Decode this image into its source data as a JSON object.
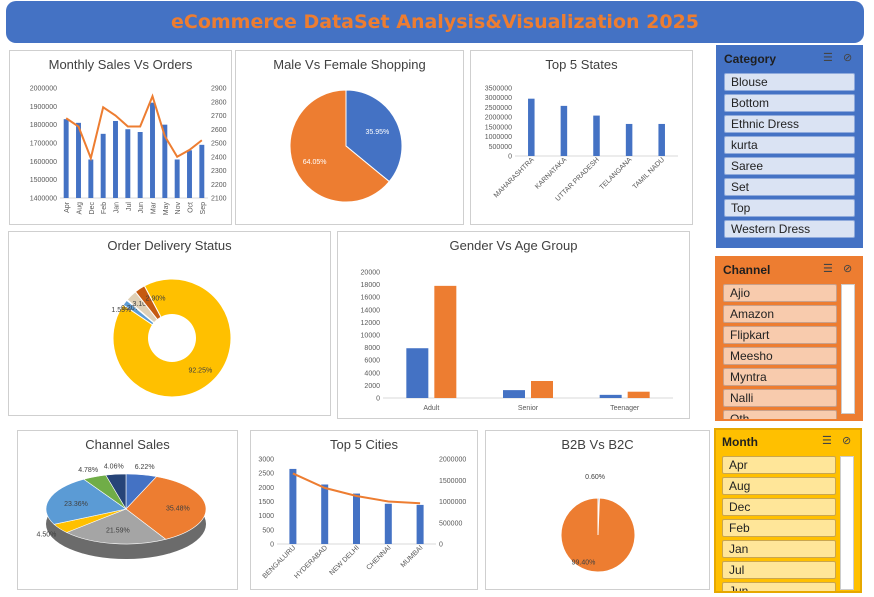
{
  "page": {
    "title": "eCommerce DataSet Analysis&Visualization 2025"
  },
  "colors": {
    "blue": "#4472c4",
    "orange": "#ed7d31",
    "gray": "#a5a5a5",
    "yellow": "#ffc000",
    "lightblue": "#5b9bd5",
    "green": "#70ad47",
    "navy": "#264478",
    "rust": "#c55a11"
  },
  "slicers": {
    "category": {
      "title": "Category",
      "items": [
        "Blouse",
        "Bottom",
        "Ethnic Dress",
        "kurta",
        "Saree",
        "Set",
        "Top",
        "Western Dress"
      ]
    },
    "channel": {
      "title": "Channel",
      "items": [
        "Ajio",
        "Amazon",
        "Flipkart",
        "Meesho",
        "Myntra",
        "Nalli",
        "Oth"
      ]
    },
    "month": {
      "title": "Month",
      "items": [
        "Apr",
        "Aug",
        "Dec",
        "Feb",
        "Jan",
        "Jul",
        "Jun"
      ]
    }
  },
  "chart_data": [
    {
      "id": "monthly",
      "type": "bar",
      "title": "Monthly Sales Vs Orders",
      "categories": [
        "Apr",
        "Aug",
        "Dec",
        "Feb",
        "Jan",
        "Jul",
        "Jun",
        "Mar",
        "May",
        "Nov",
        "Oct",
        "Sep"
      ],
      "series": [
        {
          "values": [
            1830000,
            1810000,
            1610000,
            1750000,
            1820000,
            1775000,
            1760000,
            1920000,
            1800000,
            1610000,
            1660000,
            1690000
          ],
          "color": "#4472c4",
          "axis": "left"
        },
        {
          "values": [
            2680,
            2620,
            2390,
            2760,
            2700,
            2620,
            2620,
            2840,
            2550,
            2400,
            2450,
            2520
          ],
          "color": "#ed7d31",
          "axis": "right",
          "type": "line"
        }
      ],
      "yticks": [
        "1400000",
        "1500000",
        "1600000",
        "1700000",
        "1800000",
        "1900000",
        "2000000"
      ],
      "y2ticks": [
        "2100",
        "2200",
        "2300",
        "2400",
        "2500",
        "2600",
        "2700",
        "2800",
        "2900"
      ],
      "ylim": [
        1400000,
        2000000
      ],
      "y2lim": [
        2100,
        2900
      ]
    },
    {
      "id": "gender",
      "type": "pie",
      "title": "Male Vs Female Shopping",
      "slices": [
        {
          "value": 35.95,
          "label": "35.95%",
          "color": "#4472c4"
        },
        {
          "value": 64.05,
          "label": "64.05%",
          "color": "#ed7d31"
        }
      ]
    },
    {
      "id": "states",
      "type": "bar",
      "title": "Top 5 States",
      "categories": [
        "MAHARASHTRA",
        "KARNATAKA",
        "UTTAR PRADESH",
        "TELANGANA",
        "TAMIL NADU"
      ],
      "values": [
        2950000,
        2580000,
        2080000,
        1650000,
        1650000
      ],
      "yticks": [
        "0",
        "500000",
        "1000000",
        "1500000",
        "2000000",
        "2500000",
        "3000000",
        "3500000"
      ],
      "ylim": [
        0,
        3500000
      ]
    },
    {
      "id": "delivery",
      "type": "pie",
      "title": "Order Delivery Status",
      "slices": [
        {
          "value": 92.25,
          "label": "92.25%",
          "color": "#ffc000"
        },
        {
          "value": 1.55,
          "label": "1.55%",
          "color": "#5b9bd5"
        },
        {
          "value": 0.2,
          "label": "0.20%",
          "color": "#4472c4"
        },
        {
          "value": 3.1,
          "label": "3.10%",
          "color": "#dfd0b6"
        },
        {
          "value": 2.9,
          "label": "2.90%",
          "color": "#c55a11"
        }
      ]
    },
    {
      "id": "agegroup",
      "type": "bar",
      "title": "Gender Vs Age Group",
      "categories": [
        "Adult",
        "Senior",
        "Teenager"
      ],
      "series": [
        {
          "values": [
            7900,
            1250,
            500
          ],
          "color": "#4472c4"
        },
        {
          "values": [
            17800,
            2700,
            1000
          ],
          "color": "#ed7d31"
        }
      ],
      "yticks": [
        "0",
        "2000",
        "4000",
        "6000",
        "8000",
        "10000",
        "12000",
        "14000",
        "16000",
        "18000",
        "20000"
      ],
      "ylim": [
        0,
        20000
      ]
    },
    {
      "id": "channel",
      "type": "pie",
      "title": "Channel Sales",
      "slices": [
        {
          "value": 6.22,
          "label": "6.22%",
          "color": "#4472c4"
        },
        {
          "value": 35.48,
          "label": "35.48%",
          "color": "#ed7d31"
        },
        {
          "value": 21.59,
          "label": "21.59%",
          "color": "#a5a5a5"
        },
        {
          "value": 4.5,
          "label": "4.50%",
          "color": "#ffc000"
        },
        {
          "value": 23.36,
          "label": "23.36%",
          "color": "#5b9bd5"
        },
        {
          "value": 4.78,
          "label": "4.78%",
          "color": "#70ad47"
        },
        {
          "value": 4.06,
          "label": "4.06%",
          "color": "#264478"
        }
      ]
    },
    {
      "id": "cities",
      "type": "bar",
      "title": "Top 5 Cities",
      "categories": [
        "BENGALURU",
        "HYDERABAD",
        "NEW DELHI",
        "CHENNAI",
        "MUMBAI"
      ],
      "series": [
        {
          "values": [
            2650,
            2100,
            1780,
            1420,
            1380
          ],
          "color": "#4472c4",
          "axis": "left"
        },
        {
          "values": [
            1660000,
            1320000,
            1130000,
            1000000,
            960000
          ],
          "color": "#ed7d31",
          "axis": "right",
          "type": "line"
        }
      ],
      "yticks": [
        "0",
        "500",
        "1000",
        "1500",
        "2000",
        "2500",
        "3000"
      ],
      "y2ticks": [
        "0",
        "500000",
        "1000000",
        "1500000",
        "2000000"
      ],
      "ylim": [
        0,
        3000
      ],
      "y2lim": [
        0,
        2000000
      ]
    },
    {
      "id": "b2b",
      "type": "pie",
      "title": "B2B Vs B2C",
      "slices": [
        {
          "value": 0.6,
          "label": "0.60%",
          "color": "#4472c4"
        },
        {
          "value": 99.4,
          "label": "99.40%",
          "color": "#ed7d31"
        }
      ]
    }
  ]
}
